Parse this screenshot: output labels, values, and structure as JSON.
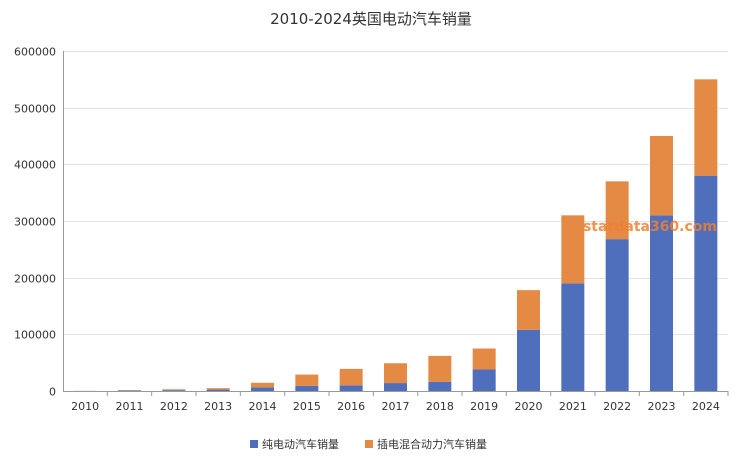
{
  "chart_data": {
    "type": "bar",
    "stacked": true,
    "title": "2010-2024英国电动汽车销量",
    "xlabel": "",
    "ylabel": "",
    "categories": [
      "2010",
      "2011",
      "2012",
      "2013",
      "2014",
      "2015",
      "2016",
      "2017",
      "2018",
      "2019",
      "2020",
      "2021",
      "2022",
      "2023",
      "2024"
    ],
    "ylim": [
      0,
      600000
    ],
    "yticks": [
      "0",
      "100000",
      "200000",
      "300000",
      "400000",
      "500000",
      "600000"
    ],
    "grid": true,
    "legend_position": "bottom",
    "series": [
      {
        "name": "纯电动汽车销量",
        "color": "#4f6fbd",
        "values": [
          200,
          1000,
          1500,
          2500,
          6500,
          9000,
          10000,
          14000,
          16000,
          38000,
          108000,
          190000,
          268000,
          310000,
          380000
        ]
      },
      {
        "name": "插电混合动力汽车销量",
        "color": "#e58a45",
        "values": [
          0,
          500,
          1500,
          2500,
          8000,
          20000,
          29000,
          35000,
          46000,
          37000,
          70000,
          120000,
          102000,
          140000,
          170000
        ]
      }
    ],
    "watermark": "stardata360.com"
  }
}
